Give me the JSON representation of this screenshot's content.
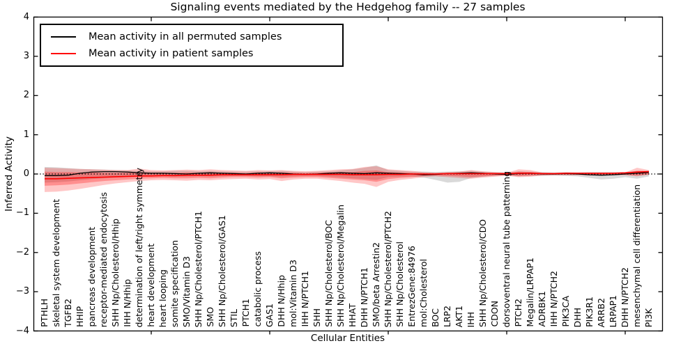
{
  "chart_data": {
    "type": "line",
    "title": "Signaling events mediated by the Hedgehog family -- 27 samples",
    "xlabel": "Cellular Entities",
    "ylabel": "Inferred Activity",
    "ylim": [
      -4,
      4
    ],
    "yticks": [
      4,
      3,
      2,
      1,
      0,
      -1,
      -2,
      -3,
      -4
    ],
    "yticklabels": [
      "4",
      "3",
      "2",
      "1",
      "0",
      "−1",
      "−2",
      "−3",
      "−4"
    ],
    "xtick_indices": [
      9,
      19,
      29,
      39,
      49
    ],
    "grid": false,
    "legend_position": "upper-left",
    "zero_line": {
      "value": 0,
      "style": "dotted",
      "color": "#000000"
    },
    "categories": [
      "PTHLH",
      "skeletal system development",
      "TGFB2",
      "HHIP",
      "pancreas development",
      "receptor-mediated endocytosis",
      "SHH Np/Cholesterol/Hhip",
      "IHH N/Hhip",
      "determination of left/right symmetry",
      "heart development",
      "heart looping",
      "somite specification",
      "SMO/Vitamin D3",
      "SHH Np/Cholesterol/PTCH1",
      "SMO",
      "SHH Np/Cholesterol/GAS1",
      "STIL",
      "PTCH1",
      "catabolic process",
      "GAS1",
      "DHH N/Hhip",
      "mol:Vitamin D3",
      "IHH N/PTCH1",
      "SHH",
      "SHH Np/Cholesterol/BOC",
      "SHH Np/Cholesterol/Megalin",
      "HHAT",
      "DHH N/PTCH1",
      "SMO/beta Arrestin2",
      "SHH Np/Cholesterol/PTCH2",
      "SHH Np/Cholesterol",
      "EntrezGene:84976",
      "mol:Cholesterol",
      "BOC",
      "LRP2",
      "AKT1",
      "IHH",
      "SHH Np/Cholesterol/CDO",
      "CDON",
      "dorsoventral neural tube patterning",
      "PTCH2",
      "Megalin/LRPAP1",
      "ADRBK1",
      "IHH N/PTCH2",
      "PIK3CA",
      "DHH",
      "PIK3R1",
      "ARRB2",
      "LRPAP1",
      "DHH N/PTCH2",
      "mesenchymal cell differentiation",
      "PI3K"
    ],
    "series": [
      {
        "name": "Mean activity in all permuted samples",
        "color": "#000000",
        "width": 1.3,
        "values": [
          -0.04,
          -0.04,
          -0.03,
          0.02,
          0.05,
          0.06,
          0.06,
          0.05,
          0.03,
          0.02,
          0.02,
          0.01,
          0.0,
          0.02,
          0.03,
          0.02,
          0.01,
          0.0,
          0.02,
          0.03,
          0.02,
          0.0,
          -0.01,
          0.0,
          0.02,
          0.03,
          0.02,
          0.01,
          0.03,
          0.02,
          0.01,
          0.0,
          -0.02,
          -0.01,
          0.01,
          0.02,
          0.03,
          0.02,
          0.0,
          -0.01,
          0.01,
          0.02,
          0.0,
          0.0,
          0.01,
          0.0,
          -0.02,
          -0.03,
          -0.02,
          0.0,
          0.02,
          0.04
        ]
      },
      {
        "name": "Mean activity in patient samples",
        "color": "#ff0000",
        "width": 1.6,
        "values": [
          -0.12,
          -0.12,
          -0.11,
          -0.1,
          -0.09,
          -0.08,
          -0.07,
          -0.06,
          -0.05,
          -0.05,
          -0.04,
          -0.04,
          -0.03,
          -0.03,
          -0.03,
          -0.02,
          -0.02,
          -0.02,
          -0.02,
          -0.02,
          -0.02,
          -0.01,
          -0.01,
          -0.01,
          -0.01,
          -0.01,
          -0.02,
          -0.02,
          -0.02,
          -0.01,
          -0.01,
          0.0,
          0.0,
          0.0,
          0.01,
          0.01,
          0.01,
          0.01,
          0.01,
          0.01,
          0.02,
          0.02,
          0.01,
          0.01,
          0.02,
          0.02,
          0.02,
          0.02,
          0.02,
          0.03,
          0.05,
          0.06
        ]
      }
    ],
    "bands": [
      {
        "name": "permuted-samples-std-band",
        "color": "rgba(0,0,0,0.15)",
        "top": [
          0.18,
          0.17,
          0.15,
          0.13,
          0.12,
          0.11,
          0.1,
          0.09,
          0.08,
          0.07,
          0.07,
          0.08,
          0.08,
          0.07,
          0.08,
          0.07,
          0.06,
          0.06,
          0.07,
          0.07,
          0.08,
          0.06,
          0.05,
          0.06,
          0.07,
          0.09,
          0.12,
          0.16,
          0.22,
          0.1,
          0.08,
          0.06,
          0.06,
          0.05,
          0.06,
          0.07,
          0.08,
          0.06,
          0.05,
          0.04,
          0.07,
          0.06,
          0.05,
          0.04,
          0.05,
          0.04,
          0.05,
          0.05,
          0.05,
          0.05,
          0.08,
          0.07
        ],
        "bottom": [
          -0.22,
          -0.21,
          -0.19,
          -0.16,
          -0.13,
          -0.11,
          -0.09,
          -0.08,
          -0.07,
          -0.06,
          -0.06,
          -0.07,
          -0.07,
          -0.06,
          -0.07,
          -0.06,
          -0.05,
          -0.05,
          -0.06,
          -0.06,
          -0.08,
          -0.06,
          -0.05,
          -0.05,
          -0.07,
          -0.09,
          -0.11,
          -0.13,
          -0.15,
          -0.08,
          -0.07,
          -0.06,
          -0.09,
          -0.15,
          -0.22,
          -0.2,
          -0.1,
          -0.07,
          -0.05,
          -0.04,
          -0.06,
          -0.05,
          -0.05,
          -0.04,
          -0.05,
          -0.06,
          -0.1,
          -0.14,
          -0.12,
          -0.08,
          -0.12,
          -0.06
        ]
      },
      {
        "name": "patient-samples-outer-band",
        "color": "rgba(255,0,0,0.22)",
        "top": [
          0.16,
          0.15,
          0.14,
          0.13,
          0.12,
          0.11,
          0.1,
          0.1,
          0.14,
          0.1,
          0.09,
          0.1,
          0.11,
          0.1,
          0.12,
          0.1,
          0.09,
          0.08,
          0.1,
          0.09,
          0.1,
          0.08,
          0.07,
          0.08,
          0.1,
          0.12,
          0.13,
          0.18,
          0.2,
          0.12,
          0.1,
          0.08,
          0.05,
          0.04,
          0.05,
          0.06,
          0.1,
          0.07,
          0.05,
          0.03,
          0.12,
          0.1,
          0.04,
          0.03,
          0.04,
          0.03,
          0.03,
          0.03,
          0.03,
          0.04,
          0.16,
          0.1
        ],
        "bottom": [
          -0.46,
          -0.45,
          -0.42,
          -0.38,
          -0.33,
          -0.28,
          -0.24,
          -0.21,
          -0.18,
          -0.16,
          -0.15,
          -0.16,
          -0.17,
          -0.15,
          -0.16,
          -0.14,
          -0.13,
          -0.12,
          -0.14,
          -0.13,
          -0.18,
          -0.14,
          -0.12,
          -0.12,
          -0.15,
          -0.18,
          -0.22,
          -0.25,
          -0.33,
          -0.2,
          -0.15,
          -0.12,
          -0.08,
          -0.06,
          -0.08,
          -0.1,
          -0.12,
          -0.09,
          -0.07,
          -0.04,
          -0.08,
          -0.07,
          -0.04,
          -0.03,
          -0.03,
          -0.03,
          -0.04,
          -0.04,
          -0.03,
          -0.03,
          -0.06,
          -0.02
        ]
      },
      {
        "name": "patient-samples-inner-band",
        "color": "rgba(255,0,0,0.28)",
        "top": [
          0.06,
          0.05,
          0.05,
          0.04,
          0.04,
          0.03,
          0.03,
          0.03,
          0.05,
          0.03,
          0.03,
          0.03,
          0.04,
          0.03,
          0.05,
          0.03,
          0.03,
          0.02,
          0.04,
          0.03,
          0.04,
          0.03,
          0.02,
          0.03,
          0.04,
          0.05,
          0.05,
          0.08,
          0.09,
          0.05,
          0.04,
          0.03,
          0.02,
          0.01,
          0.02,
          0.02,
          0.04,
          0.03,
          0.02,
          0.01,
          0.06,
          0.05,
          0.02,
          0.01,
          0.02,
          0.01,
          0.01,
          0.01,
          0.01,
          0.02,
          0.08,
          0.08
        ],
        "bottom": [
          -0.3,
          -0.29,
          -0.27,
          -0.24,
          -0.21,
          -0.18,
          -0.16,
          -0.14,
          -0.12,
          -0.11,
          -0.1,
          -0.11,
          -0.11,
          -0.1,
          -0.11,
          -0.09,
          -0.08,
          -0.08,
          -0.09,
          -0.08,
          -0.11,
          -0.09,
          -0.08,
          -0.08,
          -0.1,
          -0.12,
          -0.14,
          -0.16,
          -0.2,
          -0.13,
          -0.1,
          -0.08,
          -0.05,
          -0.04,
          -0.05,
          -0.06,
          -0.08,
          -0.06,
          -0.04,
          -0.03,
          -0.05,
          -0.04,
          -0.02,
          -0.02,
          -0.02,
          -0.02,
          -0.02,
          -0.02,
          -0.02,
          -0.02,
          -0.04,
          -0.01
        ]
      }
    ]
  }
}
